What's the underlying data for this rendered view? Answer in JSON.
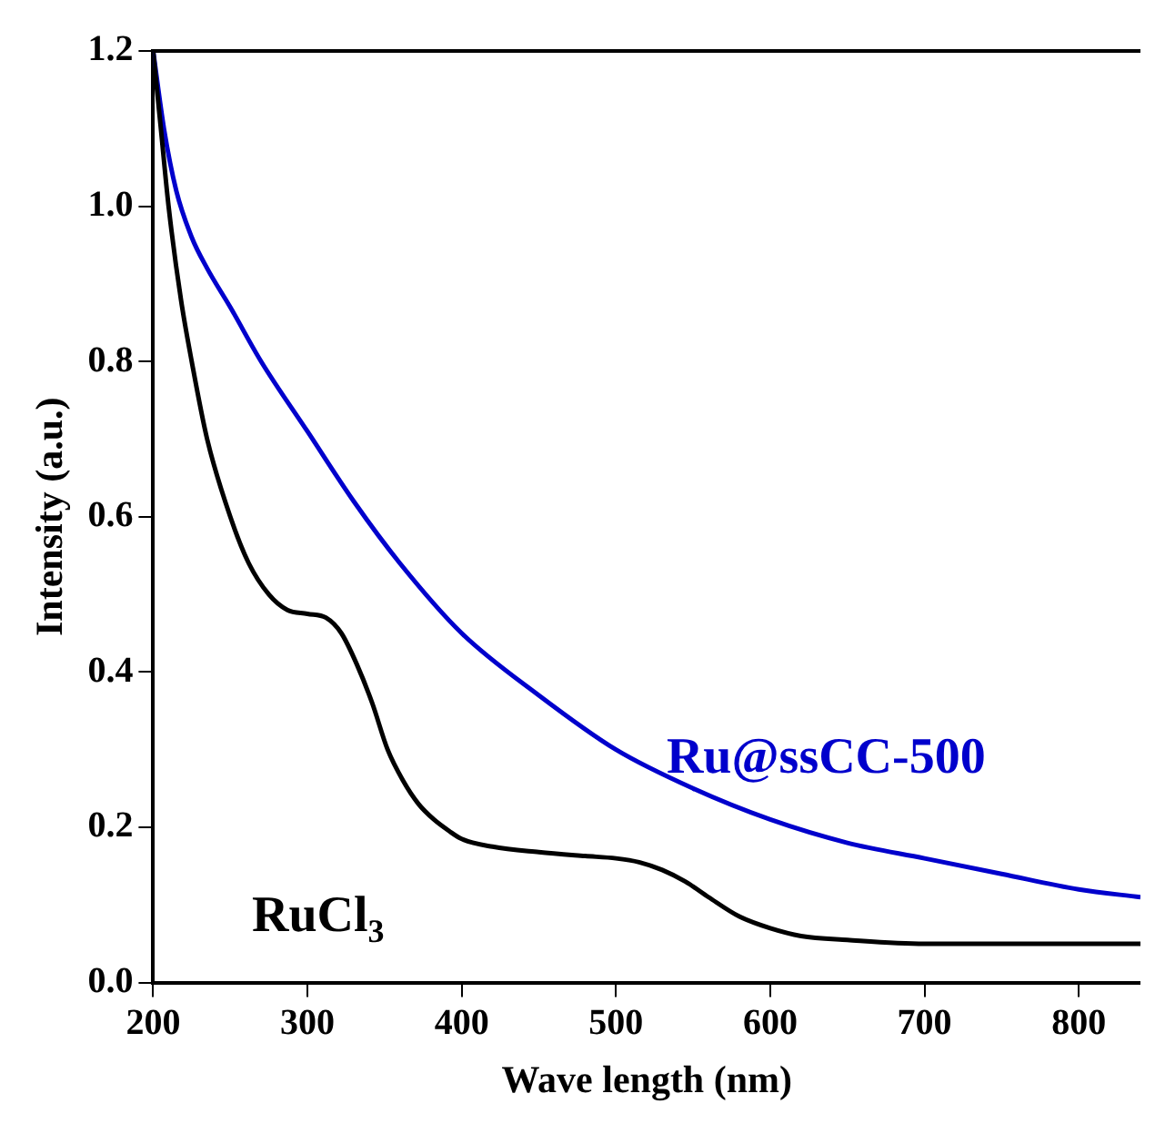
{
  "chart_data": {
    "type": "line",
    "xlabel": "Wave length (nm)",
    "ylabel": "Intensity (a.u.)",
    "xlim": [
      200,
      840
    ],
    "ylim": [
      0,
      1.2
    ],
    "xticks": [
      200,
      300,
      400,
      500,
      600,
      700,
      800
    ],
    "yticks": [
      {
        "value": 0,
        "label": "0.0"
      },
      0.2,
      0.4,
      0.6,
      0.8,
      {
        "value": 1,
        "label": "1.0"
      },
      1.2
    ],
    "grid": false,
    "legend": false,
    "marker": "none",
    "line_style": "solid",
    "series": [
      {
        "name": "RuCl$_{3}$",
        "color": "#000000",
        "x": [
          200,
          205,
          210,
          218,
          225,
          235,
          250,
          262,
          275,
          287,
          300,
          312,
          322,
          332,
          342,
          352,
          362,
          372,
          382,
          392,
          400,
          420,
          450,
          480,
          500,
          515,
          530,
          545,
          560,
          580,
          600,
          620,
          650,
          700,
          750,
          800,
          840
        ],
        "values": [
          1.2,
          1.1,
          1.0,
          0.88,
          0.8,
          0.7,
          0.6,
          0.54,
          0.5,
          0.48,
          0.475,
          0.47,
          0.45,
          0.41,
          0.36,
          0.3,
          0.26,
          0.23,
          0.21,
          0.195,
          0.185,
          0.175,
          0.168,
          0.163,
          0.16,
          0.155,
          0.145,
          0.13,
          0.11,
          0.085,
          0.07,
          0.06,
          0.055,
          0.05,
          0.05,
          0.05,
          0.05
        ]
      },
      {
        "name": "Ru@ssCC-500",
        "color": "#0000cc",
        "x": [
          200,
          207,
          215,
          225,
          235,
          250,
          270,
          300,
          330,
          360,
          400,
          450,
          500,
          550,
          600,
          650,
          700,
          750,
          800,
          840
        ],
        "values": [
          1.2,
          1.1,
          1.02,
          0.96,
          0.92,
          0.87,
          0.8,
          0.71,
          0.62,
          0.54,
          0.45,
          0.37,
          0.3,
          0.25,
          0.21,
          0.18,
          0.16,
          0.14,
          0.12,
          0.11
        ]
      }
    ]
  }
}
